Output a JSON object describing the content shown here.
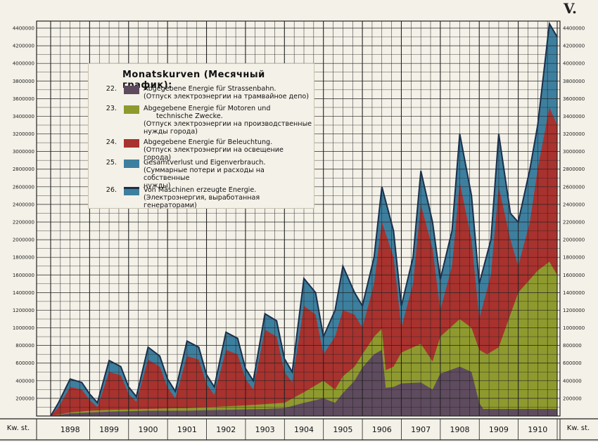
{
  "plate_label": "V.",
  "legend": {
    "title": "Monatskurven (Месячный график):",
    "items": [
      {
        "num": "22.",
        "color": "#5e4b5e",
        "lines": [
          "Abgegebene Energie für Strassenbahn.",
          "(Отпуск электроэнергии на трамвайное депо)"
        ]
      },
      {
        "num": "23.",
        "color": "#8e9a2e",
        "lines": [
          "Abgegebene Energie für Motoren und",
          "technische Zwecke.",
          "(Отпуск электроэнергии на производственные",
          "нужды города)"
        ]
      },
      {
        "num": "24.",
        "color": "#a8322e",
        "lines": [
          "Abgegebene Energie für Beleuchtung.",
          "(Отпуск электроэнергии на освещение города)"
        ]
      },
      {
        "num": "25.",
        "color": "#3d7f9e",
        "lines": [
          "Gesamtverlust und Eigenverbrauch.",
          "(Суммарные потери и расходы на собственные",
          "нужды)"
        ]
      },
      {
        "num": "26.",
        "color": "#1c2f4a",
        "lines": [
          "Von Maschinen erzeugte Energie.",
          "(Электроэнергия, выработанная генераторами)"
        ]
      }
    ]
  },
  "chart_data": {
    "type": "area",
    "stacked": true,
    "unit_label": "Kw. st.",
    "categories": [
      "1898",
      "1899",
      "1900",
      "1901",
      "1902",
      "1903",
      "1904",
      "1905",
      "1906",
      "1907",
      "1908",
      "1909",
      "1910"
    ],
    "ylim": [
      0,
      4400000
    ],
    "yticks": [
      200000,
      400000,
      600000,
      800000,
      1000000,
      1200000,
      1400000,
      1600000,
      1800000,
      2000000,
      2200000,
      2400000,
      2600000,
      2800000,
      3000000,
      3200000,
      3400000,
      3600000,
      3800000,
      4000000,
      4200000,
      4400000
    ],
    "x_start": 1898.0,
    "x_end": 1911.0,
    "grid": true,
    "series": [
      {
        "name": "Strassenbahn",
        "color": "#5e4b5e",
        "points": [
          [
            1898.0,
            0
          ],
          [
            1898.5,
            30000
          ],
          [
            1899.0,
            40000
          ],
          [
            1899.5,
            50000
          ],
          [
            1900.0,
            55000
          ],
          [
            1900.5,
            60000
          ],
          [
            1901.0,
            60000
          ],
          [
            1901.5,
            60000
          ],
          [
            1902.0,
            65000
          ],
          [
            1902.5,
            70000
          ],
          [
            1903.0,
            75000
          ],
          [
            1903.5,
            80000
          ],
          [
            1904.0,
            90000
          ],
          [
            1904.5,
            150000
          ],
          [
            1905.0,
            200000
          ],
          [
            1905.3,
            150000
          ],
          [
            1905.5,
            260000
          ],
          [
            1905.8,
            400000
          ],
          [
            1906.0,
            550000
          ],
          [
            1906.3,
            700000
          ],
          [
            1906.5,
            750000
          ],
          [
            1906.6,
            320000
          ],
          [
            1906.8,
            330000
          ],
          [
            1907.0,
            370000
          ],
          [
            1907.5,
            380000
          ],
          [
            1907.8,
            300000
          ],
          [
            1908.0,
            480000
          ],
          [
            1908.5,
            560000
          ],
          [
            1908.8,
            500000
          ],
          [
            1909.0,
            150000
          ],
          [
            1909.1,
            80000
          ],
          [
            1909.5,
            80000
          ],
          [
            1910.0,
            80000
          ],
          [
            1910.5,
            80000
          ],
          [
            1911.0,
            80000
          ]
        ]
      },
      {
        "name": "Motoren",
        "color": "#8e9a2e",
        "points": [
          [
            1898.0,
            0
          ],
          [
            1898.5,
            40000
          ],
          [
            1899.0,
            60000
          ],
          [
            1899.5,
            70000
          ],
          [
            1900.0,
            75000
          ],
          [
            1900.5,
            80000
          ],
          [
            1901.0,
            85000
          ],
          [
            1901.5,
            90000
          ],
          [
            1902.0,
            100000
          ],
          [
            1902.5,
            110000
          ],
          [
            1903.0,
            120000
          ],
          [
            1903.5,
            135000
          ],
          [
            1904.0,
            150000
          ],
          [
            1904.5,
            270000
          ],
          [
            1905.0,
            400000
          ],
          [
            1905.3,
            300000
          ],
          [
            1905.5,
            450000
          ],
          [
            1905.8,
            560000
          ],
          [
            1906.0,
            700000
          ],
          [
            1906.3,
            900000
          ],
          [
            1906.5,
            990000
          ],
          [
            1906.6,
            520000
          ],
          [
            1906.8,
            560000
          ],
          [
            1907.0,
            720000
          ],
          [
            1907.5,
            820000
          ],
          [
            1907.8,
            620000
          ],
          [
            1908.0,
            900000
          ],
          [
            1908.5,
            1100000
          ],
          [
            1908.8,
            1000000
          ],
          [
            1909.0,
            750000
          ],
          [
            1909.2,
            700000
          ],
          [
            1909.5,
            780000
          ],
          [
            1910.0,
            1400000
          ],
          [
            1910.5,
            1650000
          ],
          [
            1910.8,
            1750000
          ],
          [
            1911.0,
            1600000
          ]
        ]
      },
      {
        "name": "Beleuchtung",
        "color": "#a8322e",
        "points": [
          [
            1898.0,
            0
          ],
          [
            1898.2,
            100000
          ],
          [
            1898.5,
            330000
          ],
          [
            1898.8,
            300000
          ],
          [
            1899.0,
            180000
          ],
          [
            1899.2,
            100000
          ],
          [
            1899.5,
            500000
          ],
          [
            1899.8,
            460000
          ],
          [
            1900.0,
            250000
          ],
          [
            1900.2,
            160000
          ],
          [
            1900.5,
            640000
          ],
          [
            1900.8,
            560000
          ],
          [
            1901.0,
            320000
          ],
          [
            1901.2,
            200000
          ],
          [
            1901.5,
            680000
          ],
          [
            1901.8,
            640000
          ],
          [
            1902.0,
            360000
          ],
          [
            1902.2,
            240000
          ],
          [
            1902.5,
            750000
          ],
          [
            1902.8,
            700000
          ],
          [
            1903.0,
            420000
          ],
          [
            1903.2,
            300000
          ],
          [
            1903.5,
            980000
          ],
          [
            1903.8,
            900000
          ],
          [
            1904.0,
            500000
          ],
          [
            1904.2,
            380000
          ],
          [
            1904.5,
            1250000
          ],
          [
            1904.8,
            1150000
          ],
          [
            1905.0,
            700000
          ],
          [
            1905.3,
            900000
          ],
          [
            1905.5,
            1200000
          ],
          [
            1905.8,
            1150000
          ],
          [
            1906.0,
            1000000
          ],
          [
            1906.3,
            1500000
          ],
          [
            1906.5,
            2200000
          ],
          [
            1906.8,
            1800000
          ],
          [
            1907.0,
            1000000
          ],
          [
            1907.3,
            1500000
          ],
          [
            1907.5,
            2400000
          ],
          [
            1907.8,
            1900000
          ],
          [
            1908.0,
            1200000
          ],
          [
            1908.3,
            1700000
          ],
          [
            1908.5,
            2650000
          ],
          [
            1908.8,
            2000000
          ],
          [
            1909.0,
            1100000
          ],
          [
            1909.3,
            1600000
          ],
          [
            1909.5,
            2600000
          ],
          [
            1909.8,
            2000000
          ],
          [
            1910.0,
            1700000
          ],
          [
            1910.3,
            2200000
          ],
          [
            1910.5,
            2800000
          ],
          [
            1910.8,
            3500000
          ],
          [
            1911.0,
            3300000
          ]
        ]
      },
      {
        "name": "Gesamtverlust",
        "color": "#3d7f9e",
        "points": [
          [
            1898.0,
            0
          ],
          [
            1898.2,
            150000
          ],
          [
            1898.5,
            420000
          ],
          [
            1898.8,
            380000
          ],
          [
            1899.0,
            250000
          ],
          [
            1899.2,
            150000
          ],
          [
            1899.5,
            630000
          ],
          [
            1899.8,
            560000
          ],
          [
            1900.0,
            330000
          ],
          [
            1900.2,
            220000
          ],
          [
            1900.5,
            780000
          ],
          [
            1900.8,
            680000
          ],
          [
            1901.0,
            420000
          ],
          [
            1901.2,
            280000
          ],
          [
            1901.5,
            850000
          ],
          [
            1901.8,
            780000
          ],
          [
            1902.0,
            470000
          ],
          [
            1902.2,
            330000
          ],
          [
            1902.5,
            950000
          ],
          [
            1902.8,
            880000
          ],
          [
            1903.0,
            540000
          ],
          [
            1903.2,
            400000
          ],
          [
            1903.5,
            1160000
          ],
          [
            1903.8,
            1080000
          ],
          [
            1904.0,
            650000
          ],
          [
            1904.2,
            500000
          ],
          [
            1904.5,
            1560000
          ],
          [
            1904.8,
            1400000
          ],
          [
            1905.0,
            900000
          ],
          [
            1905.3,
            1200000
          ],
          [
            1905.5,
            1700000
          ],
          [
            1905.8,
            1400000
          ],
          [
            1906.0,
            1250000
          ],
          [
            1906.3,
            1800000
          ],
          [
            1906.5,
            2600000
          ],
          [
            1906.8,
            2100000
          ],
          [
            1907.0,
            1250000
          ],
          [
            1907.3,
            1800000
          ],
          [
            1907.5,
            2780000
          ],
          [
            1907.8,
            2200000
          ],
          [
            1908.0,
            1550000
          ],
          [
            1908.3,
            2100000
          ],
          [
            1908.5,
            3200000
          ],
          [
            1908.8,
            2500000
          ],
          [
            1909.0,
            1500000
          ],
          [
            1909.3,
            2000000
          ],
          [
            1909.5,
            3200000
          ],
          [
            1909.8,
            2300000
          ],
          [
            1910.0,
            2200000
          ],
          [
            1910.3,
            2800000
          ],
          [
            1910.5,
            3300000
          ],
          [
            1910.8,
            4450000
          ],
          [
            1911.0,
            4300000
          ]
        ]
      },
      {
        "name": "Maschinen",
        "color": "#1c2f4a",
        "line_only": true,
        "points": [
          [
            1898.0,
            0
          ],
          [
            1898.2,
            150000
          ],
          [
            1898.5,
            420000
          ],
          [
            1898.8,
            380000
          ],
          [
            1899.0,
            250000
          ],
          [
            1899.2,
            150000
          ],
          [
            1899.5,
            630000
          ],
          [
            1899.8,
            560000
          ],
          [
            1900.0,
            330000
          ],
          [
            1900.2,
            220000
          ],
          [
            1900.5,
            780000
          ],
          [
            1900.8,
            680000
          ],
          [
            1901.0,
            420000
          ],
          [
            1901.2,
            280000
          ],
          [
            1901.5,
            850000
          ],
          [
            1901.8,
            780000
          ],
          [
            1902.0,
            470000
          ],
          [
            1902.2,
            330000
          ],
          [
            1902.5,
            950000
          ],
          [
            1902.8,
            880000
          ],
          [
            1903.0,
            540000
          ],
          [
            1903.2,
            400000
          ],
          [
            1903.5,
            1160000
          ],
          [
            1903.8,
            1080000
          ],
          [
            1904.0,
            650000
          ],
          [
            1904.2,
            500000
          ],
          [
            1904.5,
            1560000
          ],
          [
            1904.8,
            1400000
          ],
          [
            1905.0,
            900000
          ],
          [
            1905.3,
            1200000
          ],
          [
            1905.5,
            1700000
          ],
          [
            1905.8,
            1400000
          ],
          [
            1906.0,
            1250000
          ],
          [
            1906.3,
            1800000
          ],
          [
            1906.5,
            2600000
          ],
          [
            1906.8,
            2100000
          ],
          [
            1907.0,
            1250000
          ],
          [
            1907.3,
            1800000
          ],
          [
            1907.5,
            2780000
          ],
          [
            1907.8,
            2200000
          ],
          [
            1908.0,
            1550000
          ],
          [
            1908.3,
            2100000
          ],
          [
            1908.5,
            3200000
          ],
          [
            1908.8,
            2500000
          ],
          [
            1909.0,
            1500000
          ],
          [
            1909.3,
            2000000
          ],
          [
            1909.5,
            3200000
          ],
          [
            1909.8,
            2300000
          ],
          [
            1910.0,
            2200000
          ],
          [
            1910.3,
            2800000
          ],
          [
            1910.5,
            3300000
          ],
          [
            1910.8,
            4450000
          ],
          [
            1911.0,
            4300000
          ]
        ]
      }
    ]
  }
}
